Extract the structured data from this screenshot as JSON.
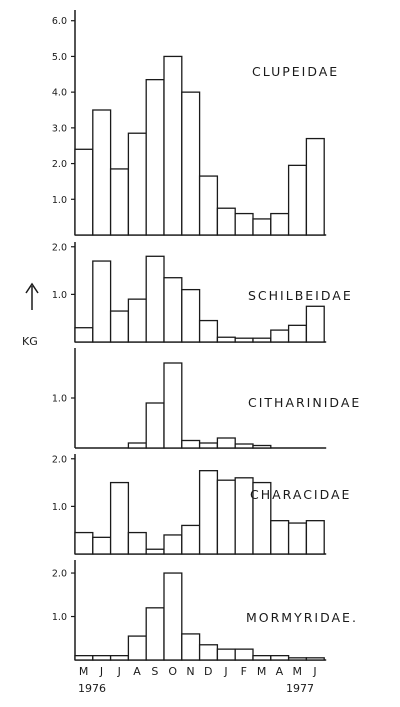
{
  "chart_data": {
    "type": "bar",
    "layout": "stacked-panels",
    "x_tick_labels": [
      "M",
      "J",
      "J",
      "A",
      "S",
      "O",
      "N",
      "D",
      "J",
      "F",
      "M",
      "A",
      "M",
      "J"
    ],
    "year_start": "1976",
    "year_end": "1977",
    "y_unit_label": "KG",
    "panels": [
      {
        "name": "CLUPEIDAE",
        "y_ticks": [
          "1.0",
          "2.0",
          "3.0",
          "4.0",
          "5.0",
          "6.0"
        ],
        "ylim": [
          0,
          6.3
        ],
        "values": [
          2.4,
          3.5,
          1.85,
          2.85,
          4.35,
          5.0,
          4.0,
          1.65,
          0.75,
          0.6,
          0.45,
          0.6,
          1.95,
          2.7
        ]
      },
      {
        "name": "SCHILBEIDAE",
        "y_ticks": [
          "1.0",
          "2.0"
        ],
        "ylim": [
          0,
          2.1
        ],
        "values": [
          0.3,
          1.7,
          0.65,
          0.9,
          1.8,
          1.35,
          1.1,
          0.45,
          0.1,
          0.08,
          0.08,
          0.25,
          0.35,
          0.75
        ]
      },
      {
        "name": "CITHARINIDAE",
        "y_ticks": [
          "1.0"
        ],
        "ylim": [
          0,
          2.0
        ],
        "values": [
          0.0,
          0.0,
          0.0,
          0.1,
          0.9,
          1.7,
          0.15,
          0.1,
          0.2,
          0.08,
          0.05,
          0.0,
          0.0,
          0.0
        ]
      },
      {
        "name": "CHARACIDAE",
        "y_ticks": [
          "1.0",
          "2.0"
        ],
        "ylim": [
          0,
          2.1
        ],
        "values": [
          0.45,
          0.35,
          1.5,
          0.45,
          0.1,
          0.4,
          0.6,
          1.75,
          1.55,
          1.6,
          1.5,
          0.7,
          0.65,
          0.7
        ]
      },
      {
        "name": "MORMYRIDAE.",
        "y_ticks": [
          "1.0",
          "2.0"
        ],
        "ylim": [
          0,
          2.3
        ],
        "values": [
          0.1,
          0.1,
          0.1,
          0.55,
          1.2,
          2.0,
          0.6,
          0.35,
          0.25,
          0.25,
          0.1,
          0.1,
          0.05,
          0.05
        ]
      }
    ]
  }
}
